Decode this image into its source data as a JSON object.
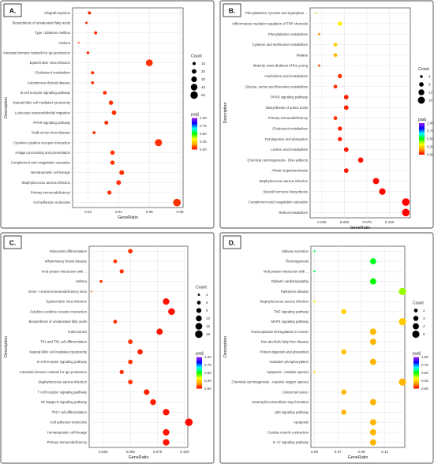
{
  "chart_data": [
    {
      "type": "scatter",
      "panel_label": "A.",
      "xlabel": "GeneRatio",
      "ylabel": "Description",
      "xlim": [
        0.01,
        0.082
      ],
      "x_ticks": [
        "0.02",
        "0.04",
        "0.06",
        "0.08"
      ],
      "x_tick_values": [
        0.02,
        0.04,
        0.06,
        0.08
      ],
      "terms": [
        {
          "label": "Allograft rejection",
          "gene_ratio": 0.021,
          "count": 10,
          "padj": 0.05
        },
        {
          "label": "Biosynthesis of unsaturated fatty acids",
          "gene_ratio": 0.019,
          "count": 6,
          "padj": 0.05
        },
        {
          "label": "Type I diabetes mellitus",
          "gene_ratio": 0.025,
          "count": 10,
          "padj": 0.05
        },
        {
          "label": "Asthma",
          "gene_ratio": 0.014,
          "count": 3,
          "padj": 0.05
        },
        {
          "label": "Intestinal immune network for IgA production",
          "gene_ratio": 0.02,
          "count": 8,
          "padj": 0.05
        },
        {
          "label": "Epstein-Barr virus infection",
          "gene_ratio": 0.06,
          "count": 42,
          "padj": 0.05
        },
        {
          "label": "Cholesterol metabolism",
          "gene_ratio": 0.023,
          "count": 10,
          "padj": 0.05
        },
        {
          "label": "Autoimmune thyroid disease",
          "gene_ratio": 0.023,
          "count": 9,
          "padj": 0.05
        },
        {
          "label": "B cell receptor signaling pathway",
          "gene_ratio": 0.031,
          "count": 14,
          "padj": 0.05
        },
        {
          "label": "Natural killer cell mediated cytotoxicity",
          "gene_ratio": 0.035,
          "count": 18,
          "padj": 0.05
        },
        {
          "label": "Leukocyte transendothelial migration",
          "gene_ratio": 0.037,
          "count": 20,
          "padj": 0.05
        },
        {
          "label": "PPAR signaling pathway",
          "gene_ratio": 0.032,
          "count": 15,
          "padj": 0.05
        },
        {
          "label": "Graft-versus-host disease",
          "gene_ratio": 0.024,
          "count": 9,
          "padj": 0.05
        },
        {
          "label": "Cytokine-cytokine receptor interaction",
          "gene_ratio": 0.066,
          "count": 47,
          "padj": 0.05
        },
        {
          "label": "Antigen processing and presentation",
          "gene_ratio": 0.036,
          "count": 18,
          "padj": 0.05
        },
        {
          "label": "Complement and coagulation cascades",
          "gene_ratio": 0.036,
          "count": 18,
          "padj": 0.05
        },
        {
          "label": "Hematopoietic cell lineage",
          "gene_ratio": 0.042,
          "count": 22,
          "padj": 0.05
        },
        {
          "label": "Staphylococcus aureus infection",
          "gene_ratio": 0.04,
          "count": 21,
          "padj": 0.05
        },
        {
          "label": "Primary immunodeficiency",
          "gene_ratio": 0.034,
          "count": 17,
          "padj": 0.05
        },
        {
          "label": "Cell adhesion molecules",
          "gene_ratio": 0.078,
          "count": 52,
          "padj": 0.05
        }
      ],
      "legend_size": {
        "title": "Count",
        "labels": [
          "10",
          "20",
          "30",
          "40",
          "50"
        ],
        "values": [
          10,
          20,
          30,
          40,
          50
        ]
      },
      "legend_color": {
        "title": "padj",
        "labels": [
          "1.00",
          "0.75",
          "0.50",
          "0.25",
          "0.00"
        ]
      }
    },
    {
      "type": "scatter",
      "panel_label": "B.",
      "xlabel": "GeneRatio",
      "ylabel": "Description",
      "xlim": [
        0.012,
        0.123
      ],
      "x_ticks": [
        "0.025",
        "0.050",
        "0.075",
        "0.100"
      ],
      "x_tick_values": [
        0.025,
        0.05,
        0.075,
        0.1
      ],
      "terms": [
        {
          "label": "Phenylalanine, tyrosine and tryptophan ...",
          "gene_ratio": 0.018,
          "count": 2,
          "padj": 0.4
        },
        {
          "label": "Inflammatory mediator regulation of TRP channels",
          "gene_ratio": 0.045,
          "count": 7,
          "padj": 0.3
        },
        {
          "label": "Phenylalanine metabolism",
          "gene_ratio": 0.022,
          "count": 3,
          "padj": 0.15
        },
        {
          "label": "Cysteine and methionine metabolism",
          "gene_ratio": 0.04,
          "count": 6,
          "padj": 0.25
        },
        {
          "label": "Malaria",
          "gene_ratio": 0.04,
          "count": 6,
          "padj": 0.2
        },
        {
          "label": "Maturity onset diabetes of the young",
          "gene_ratio": 0.022,
          "count": 3,
          "padj": 0.08
        },
        {
          "label": "Arachidonic acid metabolism",
          "gene_ratio": 0.045,
          "count": 7,
          "padj": 0.05
        },
        {
          "label": "Glycine, serine and threonine metabolism",
          "gene_ratio": 0.04,
          "count": 6,
          "padj": 0.05
        },
        {
          "label": "PPAR signaling pathway",
          "gene_ratio": 0.052,
          "count": 8,
          "padj": 0.03
        },
        {
          "label": "Biosynthesis of amino acids",
          "gene_ratio": 0.052,
          "count": 8,
          "padj": 0.03
        },
        {
          "label": "Primary immunodeficiency",
          "gene_ratio": 0.04,
          "count": 6,
          "padj": 0.05
        },
        {
          "label": "Cholesterol metabolism",
          "gene_ratio": 0.045,
          "count": 7,
          "padj": 0.03
        },
        {
          "label": "Fat digestion and absorption",
          "gene_ratio": 0.045,
          "count": 7,
          "padj": 0.03
        },
        {
          "label": "Linoleic acid metabolism",
          "gene_ratio": 0.052,
          "count": 8,
          "padj": 0.02
        },
        {
          "label": "Chemical carcinogenesis - DNA adducts",
          "gene_ratio": 0.068,
          "count": 10,
          "padj": 0.01
        },
        {
          "label": "African trypanosomiasis",
          "gene_ratio": 0.052,
          "count": 8,
          "padj": 0.02
        },
        {
          "label": "Staphylococcus aureus infection",
          "gene_ratio": 0.085,
          "count": 13,
          "padj": 0.01
        },
        {
          "label": "Steroid hormone biosynthesis",
          "gene_ratio": 0.092,
          "count": 14,
          "padj": 0.005
        },
        {
          "label": "Complement and coagulation cascades",
          "gene_ratio": 0.118,
          "count": 18,
          "padj": 0.001
        },
        {
          "label": "Retinol metabolism",
          "gene_ratio": 0.118,
          "count": 18,
          "padj": 0.001
        }
      ],
      "legend_size": {
        "title": "Count",
        "labels": [
          "4",
          "8",
          "12",
          "16"
        ],
        "values": [
          4,
          8,
          12,
          16
        ]
      },
      "legend_color": {
        "title": "padj",
        "labels": [
          "1.00",
          "0.75",
          "0.50",
          "0.25",
          "0.00"
        ]
      }
    },
    {
      "type": "scatter",
      "panel_label": "C.",
      "xlabel": "GeneRatio",
      "ylabel": "Description",
      "xlim": [
        0.012,
        0.103
      ],
      "x_ticks": [
        "0.025",
        "0.050",
        "0.075",
        "0.100"
      ],
      "x_tick_values": [
        0.025,
        0.05,
        0.075,
        0.1
      ],
      "terms": [
        {
          "label": "Osteoclast differentiation",
          "gene_ratio": 0.05,
          "count": 8,
          "padj": 0.05
        },
        {
          "label": "Inflammatory bowel disease",
          "gene_ratio": 0.036,
          "count": 6,
          "padj": 0.05
        },
        {
          "label": "Viral protein interaction with ...",
          "gene_ratio": 0.042,
          "count": 7,
          "padj": 0.05
        },
        {
          "label": "Asthma",
          "gene_ratio": 0.023,
          "count": 4,
          "padj": 0.05
        },
        {
          "label": "Virion - Human immunodeficiency virus",
          "gene_ratio": 0.014,
          "count": 2,
          "padj": 0.1
        },
        {
          "label": "Epstein-Barr virus infection",
          "gene_ratio": 0.083,
          "count": 14,
          "padj": 0.02
        },
        {
          "label": "Cytokine-cytokine receptor interaction",
          "gene_ratio": 0.088,
          "count": 15,
          "padj": 0.02
        },
        {
          "label": "Biosynthesis of unsaturated fatty acids",
          "gene_ratio": 0.036,
          "count": 6,
          "padj": 0.05
        },
        {
          "label": "Tuberculosis",
          "gene_ratio": 0.077,
          "count": 13,
          "padj": 0.02
        },
        {
          "label": "Th1 and Th2 cell differentiation",
          "gene_ratio": 0.05,
          "count": 8,
          "padj": 0.05
        },
        {
          "label": "Natural killer cell mediated cytotoxicity",
          "gene_ratio": 0.059,
          "count": 10,
          "padj": 0.03
        },
        {
          "label": "B cell receptor signaling pathway",
          "gene_ratio": 0.05,
          "count": 8,
          "padj": 0.05
        },
        {
          "label": "Intestinal immune network for IgA production",
          "gene_ratio": 0.042,
          "count": 7,
          "padj": 0.05
        },
        {
          "label": "Staphylococcus aureus infection",
          "gene_ratio": 0.05,
          "count": 8,
          "padj": 0.05
        },
        {
          "label": "T cell receptor signaling pathway",
          "gene_ratio": 0.065,
          "count": 11,
          "padj": 0.03
        },
        {
          "label": "NF-kappa B signaling pathway",
          "gene_ratio": 0.071,
          "count": 12,
          "padj": 0.03
        },
        {
          "label": "Th17 cell differentiation",
          "gene_ratio": 0.083,
          "count": 14,
          "padj": 0.02
        },
        {
          "label": "Cell adhesion molecules",
          "gene_ratio": 0.104,
          "count": 18,
          "padj": 0.01
        },
        {
          "label": "Hematopoietic cell lineage",
          "gene_ratio": 0.083,
          "count": 14,
          "padj": 0.02
        },
        {
          "label": "Primary immunodeficiency",
          "gene_ratio": 0.083,
          "count": 14,
          "padj": 0.02
        }
      ],
      "legend_size": {
        "title": "Count",
        "labels": [
          "3",
          "6",
          "9",
          "12",
          "15",
          "18"
        ],
        "values": [
          3,
          6,
          9,
          12,
          15,
          18
        ]
      },
      "legend_color": {
        "title": "padj",
        "labels": [
          "1.00",
          "0.75",
          "0.50",
          "0.25",
          "0.00"
        ]
      }
    },
    {
      "type": "scatter",
      "panel_label": "D.",
      "xlabel": "GeneRatio",
      "ylabel": "Description",
      "xlim": [
        0.047,
        0.127
      ],
      "x_ticks": [
        "0.05",
        "0.07",
        "0.09",
        "0.11"
      ],
      "x_tick_values": [
        0.05,
        0.07,
        0.09,
        0.11
      ],
      "terms": [
        {
          "label": "Salivary secretion",
          "gene_ratio": 0.05,
          "count": 1,
          "padj": 0.55
        },
        {
          "label": "Thermogenesis",
          "gene_ratio": 0.1,
          "count": 4,
          "padj": 0.52
        },
        {
          "label": "Viral protein interaction with ...",
          "gene_ratio": 0.05,
          "count": 1,
          "padj": 0.55
        },
        {
          "label": "Diabetic cardiomyopathy",
          "gene_ratio": 0.1,
          "count": 4,
          "padj": 0.5
        },
        {
          "label": "Parkinson disease",
          "gene_ratio": 0.125,
          "count": 5,
          "padj": 0.4
        },
        {
          "label": "Staphylococcus aureus infection",
          "gene_ratio": 0.05,
          "count": 1,
          "padj": 0.3
        },
        {
          "label": "TNF signaling pathway",
          "gene_ratio": 0.075,
          "count": 3,
          "padj": 0.25
        },
        {
          "label": "MAPK signaling pathway",
          "gene_ratio": 0.125,
          "count": 5,
          "padj": 0.24
        },
        {
          "label": "Transcriptional misregulation in cancer",
          "gene_ratio": 0.1,
          "count": 4,
          "padj": 0.2
        },
        {
          "label": "Non-alcoholic fatty liver disease",
          "gene_ratio": 0.1,
          "count": 4,
          "padj": 0.2
        },
        {
          "label": "Protein digestion and absorption",
          "gene_ratio": 0.075,
          "count": 3,
          "padj": 0.22
        },
        {
          "label": "Oxidative phosphorylation",
          "gene_ratio": 0.1,
          "count": 4,
          "padj": 0.2
        },
        {
          "label": "Apoptosis - multiple species",
          "gene_ratio": 0.05,
          "count": 1,
          "padj": 0.25
        },
        {
          "label": "Chemical carcinogenesis - reactive oxygen species",
          "gene_ratio": 0.125,
          "count": 5,
          "padj": 0.2
        },
        {
          "label": "Colorectal cancer",
          "gene_ratio": 0.075,
          "count": 3,
          "padj": 0.2
        },
        {
          "label": "Neutrophil extracellular trap formation",
          "gene_ratio": 0.1,
          "count": 4,
          "padj": 0.2
        },
        {
          "label": "p53 signaling pathway",
          "gene_ratio": 0.075,
          "count": 3,
          "padj": 0.2
        },
        {
          "label": "Apoptosis",
          "gene_ratio": 0.1,
          "count": 4,
          "padj": 0.2
        },
        {
          "label": "Cardiac muscle contraction",
          "gene_ratio": 0.1,
          "count": 4,
          "padj": 0.2
        },
        {
          "label": "IL-17 signaling pathway",
          "gene_ratio": 0.1,
          "count": 4,
          "padj": 0.2
        }
      ],
      "legend_size": {
        "title": "Count",
        "labels": [
          "2",
          "3",
          "4",
          "5"
        ],
        "values": [
          2,
          3,
          4,
          5
        ]
      },
      "legend_color": {
        "title": "padj",
        "labels": [
          "1.00",
          "0.75",
          "0.50",
          "0.25",
          "0.00"
        ]
      }
    }
  ],
  "colors": {
    "gradient": [
      "#ff0000",
      "#ffa500",
      "#ffff00",
      "#00ff00",
      "#00ffff",
      "#0000ff",
      "#a020f0"
    ],
    "grid": "#e3e3e3",
    "frame": "#1a1a1a"
  }
}
